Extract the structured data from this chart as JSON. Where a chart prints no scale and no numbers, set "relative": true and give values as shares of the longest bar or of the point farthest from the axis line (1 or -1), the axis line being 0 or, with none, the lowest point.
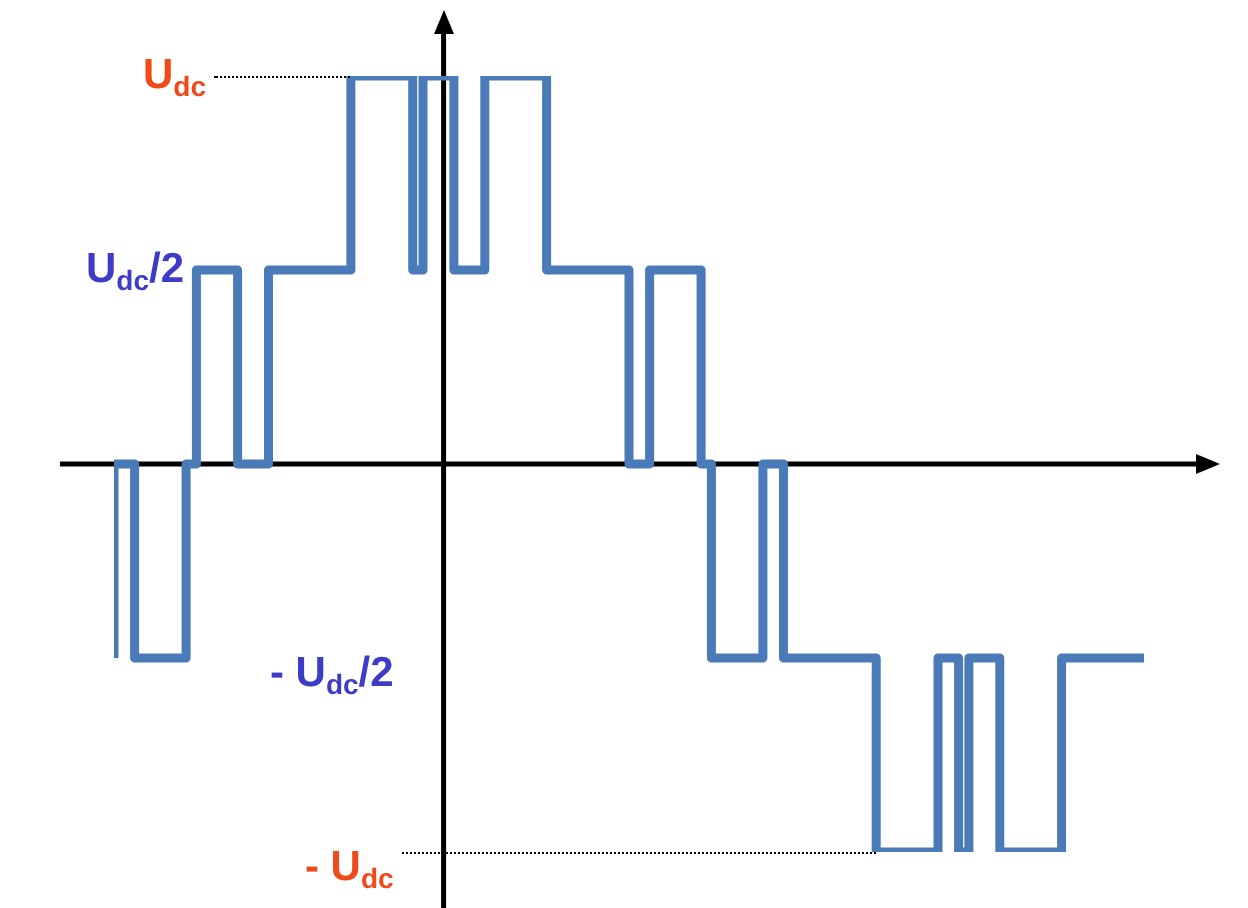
{
  "chart_data": {
    "type": "step",
    "relative": true,
    "categories": [
      null,
      null,
      null,
      null,
      null,
      null,
      null,
      null,
      null,
      null,
      null,
      null,
      null,
      null,
      null,
      null,
      null,
      null,
      null,
      null,
      null,
      null,
      null,
      null,
      null,
      null,
      null,
      null,
      null,
      null,
      null,
      null,
      null,
      null,
      null,
      null,
      null,
      null,
      null,
      null,
      null,
      null,
      null,
      null,
      null,
      null,
      null,
      null,
      null,
      null,
      null,
      null,
      null,
      null,
      null,
      null,
      null,
      null,
      null,
      null,
      null,
      null,
      null,
      null,
      null,
      null,
      null,
      null,
      null,
      null,
      null,
      null,
      null,
      null,
      null,
      null,
      null,
      null,
      null,
      null,
      null,
      null,
      null,
      null,
      null,
      null,
      null,
      null,
      null,
      null,
      null,
      null,
      null,
      null,
      null,
      null,
      null,
      null,
      null,
      null,
      null
    ],
    "values": [
      -0.5,
      0,
      0,
      -0.5,
      -0.5,
      -0.5,
      -0.5,
      -0.5,
      0,
      0.5,
      0.5,
      0.5,
      0.5,
      0,
      0,
      0,
      0.5,
      0.5,
      0.5,
      0.5,
      0.5,
      0.5,
      0.5,
      0.5,
      1,
      1,
      1,
      1,
      1,
      1,
      0.5,
      1,
      1,
      1,
      0.5,
      0.5,
      0.5,
      1,
      1,
      1,
      1,
      1,
      1,
      0.5,
      0.5,
      0.5,
      0.5,
      0.5,
      0.5,
      0.5,
      0.5,
      0,
      0,
      0.5,
      0.5,
      0.5,
      0.5,
      0.5,
      0,
      -0.5,
      -0.5,
      -0.5,
      -0.5,
      -0.5,
      0,
      0,
      -0.5,
      -0.5,
      -0.5,
      -0.5,
      -0.5,
      -0.5,
      -0.5,
      -0.5,
      -0.5,
      -1,
      -1,
      -1,
      -1,
      -1,
      -1,
      -0.5,
      -0.5,
      -1,
      -0.5,
      -0.5,
      -0.5,
      -1,
      -1,
      -1,
      -1,
      -1,
      -1,
      -0.5,
      -0.5,
      -0.5,
      -0.5,
      -0.5,
      -0.5,
      -0.5,
      -0.5
    ],
    "color": "#4a7ab8",
    "marker": "none",
    "annotations": [
      "U$_{dc}$",
      "U$_{dc}$/2",
      "- U$_{dc}$/2",
      "- U$_{dc}$"
    ]
  }
}
